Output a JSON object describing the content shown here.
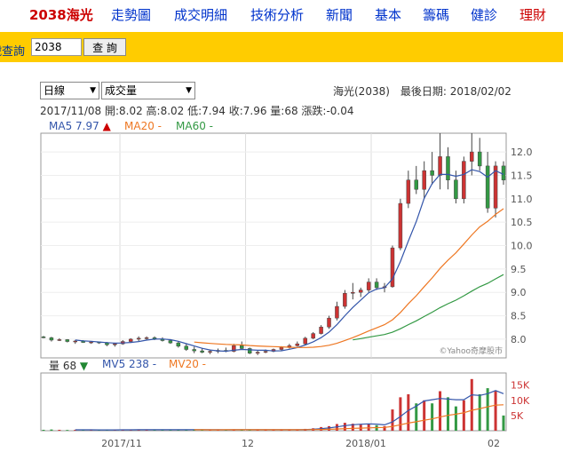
{
  "nav": {
    "stock": "2038海光",
    "items": [
      "走勢圖",
      "成交明細",
      "技術分析",
      "新聞",
      "基本",
      "籌碼",
      "健診",
      "理財"
    ]
  },
  "query": {
    "label": "代號查詢",
    "value": "2038",
    "button": "查 詢"
  },
  "controls": {
    "period": "日線",
    "indicator": "成交量",
    "info": "海光(2038)　最後日期: 2018/02/02"
  },
  "ohlc_line": "2017/11/08  開:8.02  高:8.02  低:7.94  收:7.96  量:68  漲跌:-0.04",
  "legend_price": [
    {
      "label": "MA5 7.97",
      "color": "#3355aa",
      "arrow": "▲",
      "arrow_color": "#cc0000"
    },
    {
      "label": "MA20 -",
      "color": "#ee7722"
    },
    {
      "label": "MA60 -",
      "color": "#339944"
    }
  ],
  "legend_volume": [
    {
      "label": "量 68",
      "color": "#333333",
      "arrow": "▼",
      "arrow_color": "#228833"
    },
    {
      "label": "MV5 238 -",
      "color": "#3355aa"
    },
    {
      "label": "MV20 -",
      "color": "#ee7722"
    }
  ],
  "watermark": "©Yahoo奇摩股市",
  "colors": {
    "up": "#cc3333",
    "down": "#339944",
    "ma5": "#3355aa",
    "ma20": "#ee7722",
    "ma60": "#339944",
    "nav": "#ffcc00"
  },
  "chart_data": {
    "type": "candlestick",
    "price_axis": {
      "ticks": [
        8.0,
        8.5,
        9.0,
        9.5,
        10.0,
        10.5,
        11.0,
        11.5,
        12.0
      ],
      "range": [
        7.6,
        12.4
      ]
    },
    "volume_axis": {
      "ticks": [
        "5K",
        "10K",
        "15K"
      ],
      "range": [
        0,
        19000
      ]
    },
    "x_labels": [
      "2017/11",
      "12",
      "2018/01",
      "02"
    ],
    "candles": [
      [
        8.05,
        8.07,
        8.02,
        8.03,
        300
      ],
      [
        8.03,
        8.05,
        7.95,
        7.98,
        400
      ],
      [
        7.98,
        8.02,
        7.96,
        7.99,
        300
      ],
      [
        7.99,
        8.0,
        7.93,
        7.95,
        250
      ],
      [
        7.95,
        7.98,
        7.9,
        7.96,
        280
      ],
      [
        7.96,
        7.98,
        7.92,
        7.93,
        300
      ],
      [
        7.93,
        7.96,
        7.9,
        7.94,
        260
      ],
      [
        7.94,
        7.95,
        7.9,
        7.92,
        240
      ],
      [
        7.92,
        7.94,
        7.85,
        7.88,
        300
      ],
      [
        7.88,
        7.92,
        7.84,
        7.9,
        280
      ],
      [
        7.9,
        7.98,
        7.88,
        7.95,
        320
      ],
      [
        7.95,
        8.02,
        7.92,
        8.0,
        350
      ],
      [
        8.0,
        8.06,
        7.96,
        8.02,
        330
      ],
      [
        8.02,
        8.06,
        7.98,
        8.03,
        300
      ],
      [
        8.03,
        8.06,
        7.98,
        8.0,
        290
      ],
      [
        8.0,
        8.04,
        7.95,
        7.97,
        300
      ],
      [
        7.97,
        8.0,
        7.9,
        7.92,
        320
      ],
      [
        7.92,
        7.95,
        7.82,
        7.85,
        360
      ],
      [
        7.85,
        7.9,
        7.75,
        7.78,
        380
      ],
      [
        7.78,
        7.84,
        7.7,
        7.75,
        340
      ],
      [
        7.75,
        7.8,
        7.7,
        7.72,
        320
      ],
      [
        7.72,
        7.78,
        7.68,
        7.74,
        300
      ],
      [
        7.74,
        7.8,
        7.7,
        7.76,
        290
      ],
      [
        7.76,
        7.82,
        7.72,
        7.74,
        280
      ],
      [
        7.74,
        7.9,
        7.72,
        7.86,
        420
      ],
      [
        7.86,
        7.95,
        7.78,
        7.8,
        400
      ],
      [
        7.8,
        7.82,
        7.68,
        7.7,
        380
      ],
      [
        7.7,
        7.76,
        7.66,
        7.72,
        300
      ],
      [
        7.72,
        7.78,
        7.7,
        7.74,
        290
      ],
      [
        7.74,
        7.8,
        7.72,
        7.78,
        300
      ],
      [
        7.78,
        7.85,
        7.76,
        7.82,
        320
      ],
      [
        7.82,
        7.9,
        7.8,
        7.86,
        340
      ],
      [
        7.86,
        7.95,
        7.84,
        7.9,
        380
      ],
      [
        7.9,
        8.05,
        7.88,
        8.02,
        600
      ],
      [
        8.02,
        8.15,
        8.0,
        8.12,
        800
      ],
      [
        8.12,
        8.3,
        8.1,
        8.26,
        1200
      ],
      [
        8.26,
        8.5,
        8.22,
        8.45,
        1500
      ],
      [
        8.45,
        8.8,
        8.4,
        8.7,
        2200
      ],
      [
        8.7,
        9.05,
        8.65,
        8.98,
        2600
      ],
      [
        8.98,
        9.2,
        8.85,
        9.0,
        2300
      ],
      [
        9.0,
        9.1,
        8.9,
        9.05,
        2000
      ],
      [
        9.05,
        9.3,
        9.0,
        9.22,
        2100
      ],
      [
        9.22,
        9.3,
        9.05,
        9.1,
        1800
      ],
      [
        9.1,
        9.2,
        9.0,
        9.12,
        1500
      ],
      [
        9.12,
        10.0,
        9.1,
        9.95,
        7000
      ],
      [
        9.95,
        11.0,
        9.9,
        10.9,
        11000
      ],
      [
        10.9,
        11.6,
        10.8,
        11.4,
        12000
      ],
      [
        11.4,
        11.7,
        11.1,
        11.2,
        9000
      ],
      [
        11.2,
        11.8,
        11.0,
        11.6,
        10000
      ],
      [
        11.6,
        12.0,
        11.3,
        11.5,
        9000
      ],
      [
        11.5,
        12.4,
        11.2,
        11.9,
        13000
      ],
      [
        11.9,
        12.1,
        11.2,
        11.4,
        11000
      ],
      [
        11.4,
        11.6,
        10.9,
        11.0,
        8000
      ],
      [
        11.0,
        11.9,
        10.9,
        11.8,
        10000
      ],
      [
        11.8,
        12.4,
        11.5,
        12.0,
        17000
      ],
      [
        12.0,
        12.3,
        11.6,
        11.7,
        12000
      ],
      [
        11.7,
        12.0,
        10.7,
        10.8,
        14000
      ],
      [
        10.8,
        11.8,
        10.6,
        11.7,
        13000
      ],
      [
        11.7,
        11.8,
        11.3,
        11.4,
        5000
      ]
    ]
  }
}
